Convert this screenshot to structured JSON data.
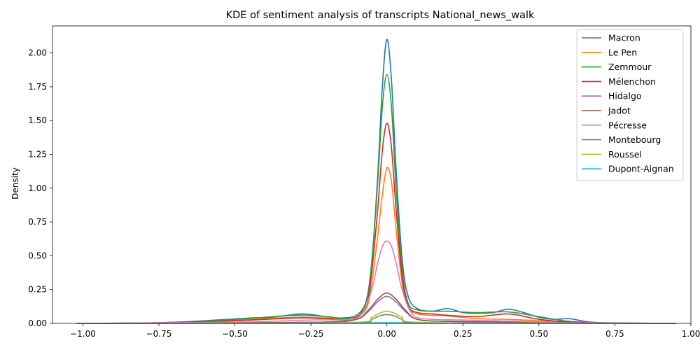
{
  "chart_data": {
    "type": "line",
    "title": "KDE of sentiment analysis of transcripts National_news_walk",
    "xlabel": "",
    "ylabel": "Density",
    "xlim": [
      -1.1,
      1.0
    ],
    "ylim": [
      0,
      2.2
    ],
    "xticks": [
      -1.0,
      -0.75,
      -0.5,
      -0.25,
      0.0,
      0.25,
      0.5,
      0.75,
      1.0
    ],
    "xtick_labels": [
      "−1.00",
      "−0.75",
      "−0.50",
      "−0.25",
      "0.00",
      "0.25",
      "0.50",
      "0.75",
      "1.00"
    ],
    "yticks": [
      0,
      0.25,
      0.5,
      0.75,
      1.0,
      1.25,
      1.5,
      1.75,
      2.0
    ],
    "ytick_labels": [
      "0.00",
      "0.25",
      "0.50",
      "0.75",
      "1.00",
      "1.25",
      "1.50",
      "1.75",
      "2.00"
    ],
    "grid": false,
    "legend_position": "top-right",
    "series": [
      {
        "name": "Macron",
        "color": "#1f77b4",
        "x": [
          -1.02,
          -0.75,
          -0.6,
          -0.45,
          -0.38,
          -0.28,
          -0.2,
          -0.15,
          -0.1,
          -0.07,
          -0.05,
          -0.03,
          -0.015,
          0,
          0.015,
          0.03,
          0.05,
          0.07,
          0.1,
          0.15,
          0.2,
          0.25,
          0.3,
          0.35,
          0.4,
          0.45,
          0.5,
          0.55,
          0.6,
          0.65,
          0.7,
          0.8,
          0.95
        ],
        "y": [
          0,
          0.005,
          0.02,
          0.04,
          0.045,
          0.07,
          0.05,
          0.04,
          0.06,
          0.15,
          0.45,
          1.1,
          1.75,
          2.1,
          1.8,
          1.15,
          0.48,
          0.2,
          0.11,
          0.09,
          0.11,
          0.08,
          0.075,
          0.08,
          0.105,
          0.08,
          0.045,
          0.03,
          0.035,
          0.015,
          0.005,
          0.002,
          0
        ]
      },
      {
        "name": "Le Pen",
        "color": "#ff7f0e",
        "x": [
          -1.02,
          -0.75,
          -0.5,
          -0.3,
          -0.2,
          -0.12,
          -0.07,
          -0.05,
          -0.03,
          -0.015,
          0,
          0.015,
          0.03,
          0.05,
          0.07,
          0.1,
          0.15,
          0.2,
          0.3,
          0.4,
          0.5,
          0.6,
          0.75,
          0.95
        ],
        "y": [
          0,
          0.005,
          0.025,
          0.045,
          0.04,
          0.035,
          0.1,
          0.3,
          0.65,
          0.95,
          1.15,
          1.05,
          0.7,
          0.3,
          0.12,
          0.07,
          0.06,
          0.055,
          0.035,
          0.03,
          0.02,
          0.01,
          0.003,
          0
        ],
        "hidden_note": null
      },
      {
        "name": "Zemmour",
        "color": "#2ca02c",
        "x": [
          -1.02,
          -0.75,
          -0.5,
          -0.3,
          -0.2,
          -0.12,
          -0.07,
          -0.05,
          -0.03,
          -0.015,
          0,
          0.015,
          0.03,
          0.05,
          0.07,
          0.1,
          0.15,
          0.2,
          0.3,
          0.4,
          0.5,
          0.6,
          0.75,
          0.95
        ],
        "y": [
          0,
          0.005,
          0.03,
          0.06,
          0.05,
          0.04,
          0.15,
          0.45,
          1.05,
          1.6,
          1.84,
          1.6,
          1.0,
          0.4,
          0.15,
          0.1,
          0.09,
          0.09,
          0.08,
          0.085,
          0.05,
          0.015,
          0.003,
          0
        ]
      },
      {
        "name": "Mélenchon",
        "color": "#d62728",
        "x": [
          -1.02,
          -0.75,
          -0.5,
          -0.3,
          -0.2,
          -0.12,
          -0.07,
          -0.05,
          -0.03,
          -0.015,
          0,
          0.015,
          0.03,
          0.05,
          0.07,
          0.1,
          0.15,
          0.2,
          0.3,
          0.4,
          0.5,
          0.6,
          0.75,
          0.95
        ],
        "y": [
          0,
          0.004,
          0.02,
          0.04,
          0.035,
          0.03,
          0.12,
          0.38,
          0.85,
          1.28,
          1.48,
          1.3,
          0.85,
          0.35,
          0.13,
          0.08,
          0.07,
          0.06,
          0.05,
          0.07,
          0.03,
          0.01,
          0.002,
          0
        ]
      },
      {
        "name": "Hidalgo",
        "color": "#9467bd",
        "x": [
          -1.02,
          -0.5,
          -0.2,
          -0.1,
          -0.06,
          -0.03,
          0,
          0.03,
          0.06,
          0.1,
          0.2,
          0.4,
          0.6,
          0.95
        ],
        "y": [
          0,
          0.005,
          0.01,
          0.03,
          0.09,
          0.16,
          0.2,
          0.16,
          0.09,
          0.03,
          0.015,
          0.01,
          0.003,
          0
        ]
      },
      {
        "name": "Jadot",
        "color": "#8c564b",
        "x": [
          -1.02,
          -0.5,
          -0.2,
          -0.1,
          -0.06,
          -0.03,
          0,
          0.03,
          0.06,
          0.1,
          0.2,
          0.4,
          0.6,
          0.95
        ],
        "y": [
          0,
          0.005,
          0.01,
          0.03,
          0.1,
          0.18,
          0.225,
          0.18,
          0.1,
          0.03,
          0.015,
          0.01,
          0.003,
          0
        ]
      },
      {
        "name": "Pécresse",
        "color": "#e377c2",
        "x": [
          -1.02,
          -0.5,
          -0.25,
          -0.12,
          -0.08,
          -0.05,
          -0.03,
          -0.015,
          0,
          0.015,
          0.03,
          0.05,
          0.08,
          0.12,
          0.25,
          0.45,
          0.6,
          0.95
        ],
        "y": [
          0,
          0.01,
          0.025,
          0.03,
          0.08,
          0.25,
          0.45,
          0.57,
          0.61,
          0.57,
          0.45,
          0.25,
          0.08,
          0.035,
          0.025,
          0.015,
          0.005,
          0
        ]
      },
      {
        "name": "Montebourg",
        "color": "#7f7f7f",
        "x": [
          -1.02,
          -0.5,
          -0.1,
          -0.05,
          -0.025,
          0,
          0.025,
          0.05,
          0.1,
          0.5,
          0.95
        ],
        "y": [
          0,
          0.002,
          0.005,
          0.03,
          0.055,
          0.065,
          0.055,
          0.03,
          0.005,
          0.002,
          0
        ]
      },
      {
        "name": "Roussel",
        "color": "#bcbd22",
        "x": [
          -1.02,
          -0.5,
          -0.1,
          -0.05,
          -0.025,
          0,
          0.025,
          0.05,
          0.1,
          0.5,
          0.95
        ],
        "y": [
          0,
          0.002,
          0.008,
          0.045,
          0.075,
          0.09,
          0.075,
          0.045,
          0.008,
          0.002,
          0
        ]
      },
      {
        "name": "Dupont-Aignan",
        "color": "#17becf",
        "x": [
          -1.02,
          -0.5,
          -0.1,
          -0.05,
          0,
          0.05,
          0.1,
          0.5,
          0.95
        ],
        "y": [
          0,
          0.001,
          0.002,
          0.004,
          0.005,
          0.004,
          0.002,
          0.001,
          0
        ]
      }
    ]
  }
}
